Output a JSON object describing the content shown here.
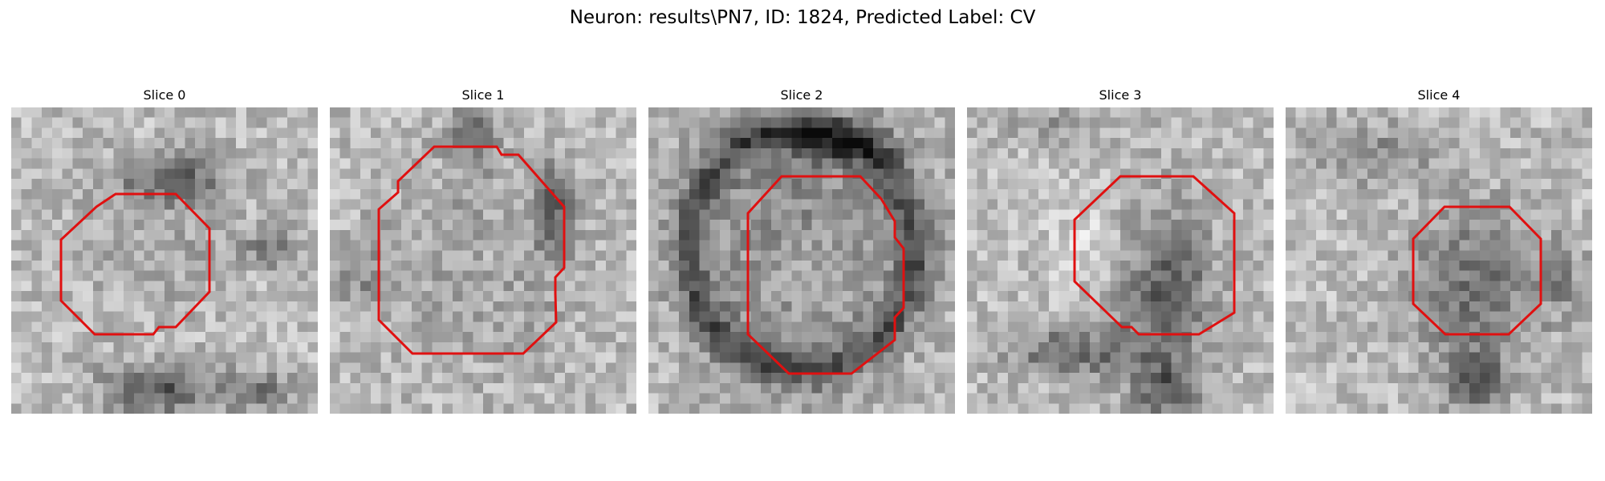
{
  "figure": {
    "title": "Neuron: results\\PN7, ID: 1824, Predicted Label: CV",
    "roi_color": "#e01010"
  },
  "slices": [
    {
      "label": "Slice 0"
    },
    {
      "label": "Slice 1"
    },
    {
      "label": "Slice 2"
    },
    {
      "label": "Slice 3"
    },
    {
      "label": "Slice 4"
    }
  ]
}
